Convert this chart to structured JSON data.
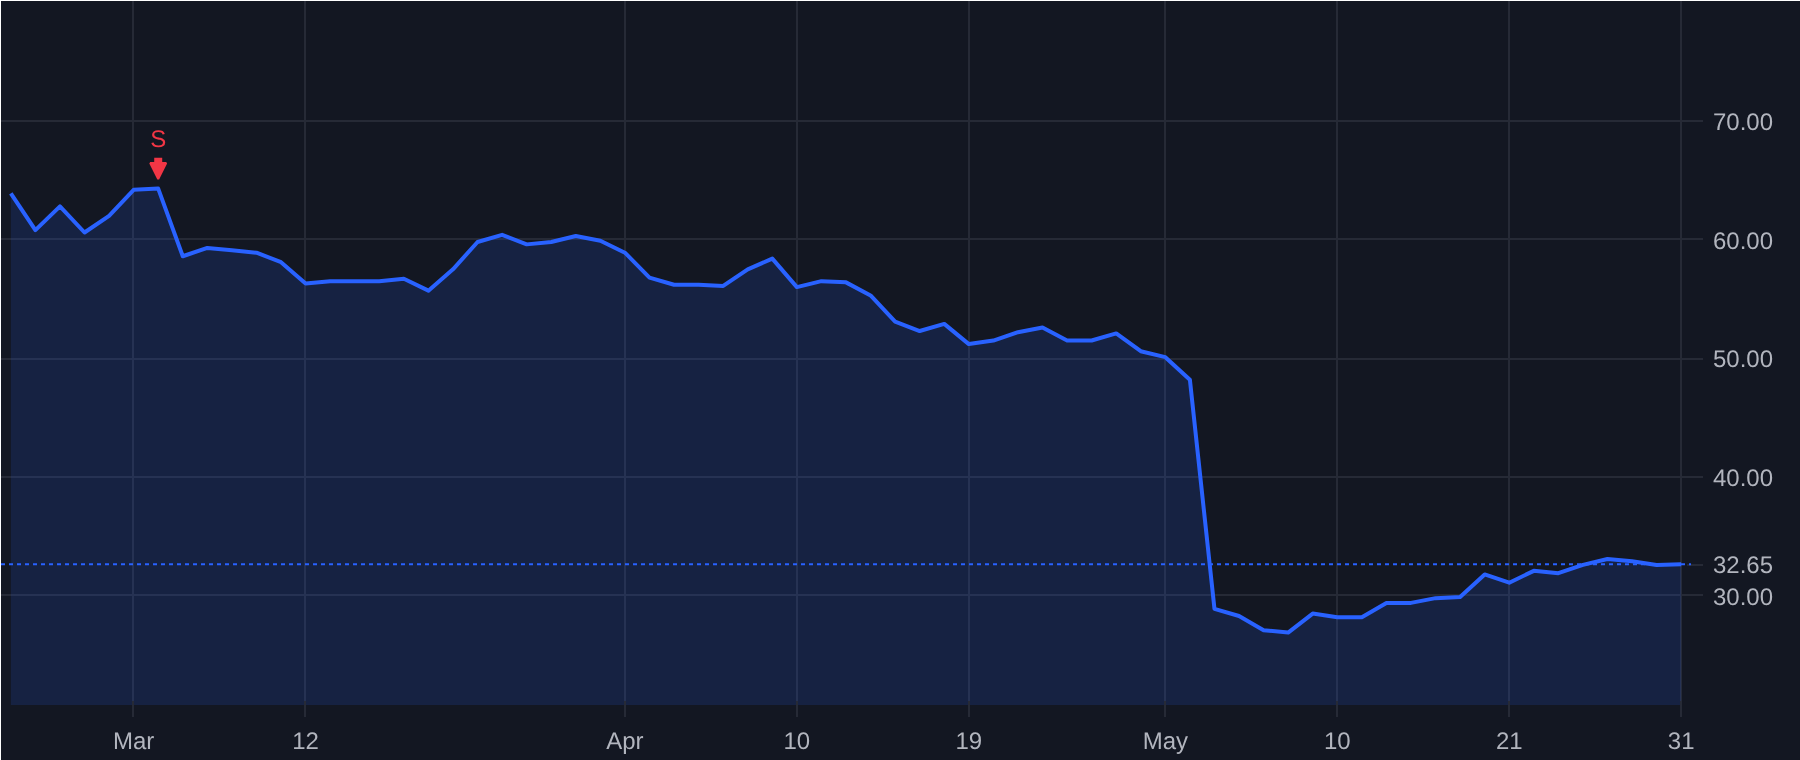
{
  "chart_data": {
    "type": "area",
    "categories": [
      null,
      null,
      null,
      null,
      null,
      "Mar",
      null,
      null,
      null,
      null,
      null,
      null,
      "12",
      null,
      null,
      null,
      null,
      null,
      null,
      null,
      null,
      null,
      null,
      null,
      null,
      "Apr",
      null,
      null,
      null,
      null,
      null,
      null,
      "10",
      null,
      null,
      null,
      null,
      null,
      null,
      "19",
      null,
      null,
      null,
      null,
      null,
      null,
      null,
      "May",
      null,
      null,
      null,
      null,
      null,
      null,
      "10",
      null,
      null,
      null,
      null,
      null,
      null,
      "21",
      null,
      null,
      null,
      null,
      null,
      null,
      "31"
    ],
    "series": [
      {
        "color": "#2962ff",
        "values": [
          63.9,
          60.8,
          62.8,
          60.6,
          62.0,
          64.2,
          64.3,
          58.6,
          59.3,
          59.1,
          58.9,
          58.1,
          56.3,
          56.5,
          56.5,
          56.5,
          56.7,
          55.7,
          57.5,
          59.8,
          60.4,
          59.6,
          59.8,
          60.3,
          59.9,
          58.9,
          56.8,
          56.2,
          56.2,
          56.1,
          57.5,
          58.4,
          56.0,
          56.5,
          56.4,
          55.3,
          53.1,
          52.3,
          52.9,
          51.2,
          51.5,
          52.2,
          52.6,
          51.5,
          51.5,
          52.1,
          50.6,
          50.1,
          48.2,
          28.9,
          28.3,
          27.1,
          26.9,
          28.5,
          28.2,
          28.2,
          29.4,
          29.4,
          29.8,
          29.9,
          31.8,
          31.1,
          32.1,
          31.9,
          32.6,
          33.1,
          32.9,
          32.6,
          32.65
        ]
      }
    ],
    "ylim": [
      20.8,
      80.1
    ],
    "yticks": [
      {
        "value": 30,
        "label": "30.00"
      },
      {
        "value": 40,
        "label": "40.00"
      },
      {
        "value": 50,
        "label": "50.00"
      },
      {
        "value": 60,
        "label": "60.00"
      },
      {
        "value": 70,
        "label": "70.00"
      }
    ],
    "ref_lines": [
      {
        "axis": "y",
        "value": 32.65,
        "label": "32.65",
        "color": "#2962ff",
        "line_style": "dotted"
      }
    ],
    "annotations": [
      "S"
    ],
    "grid": true
  }
}
